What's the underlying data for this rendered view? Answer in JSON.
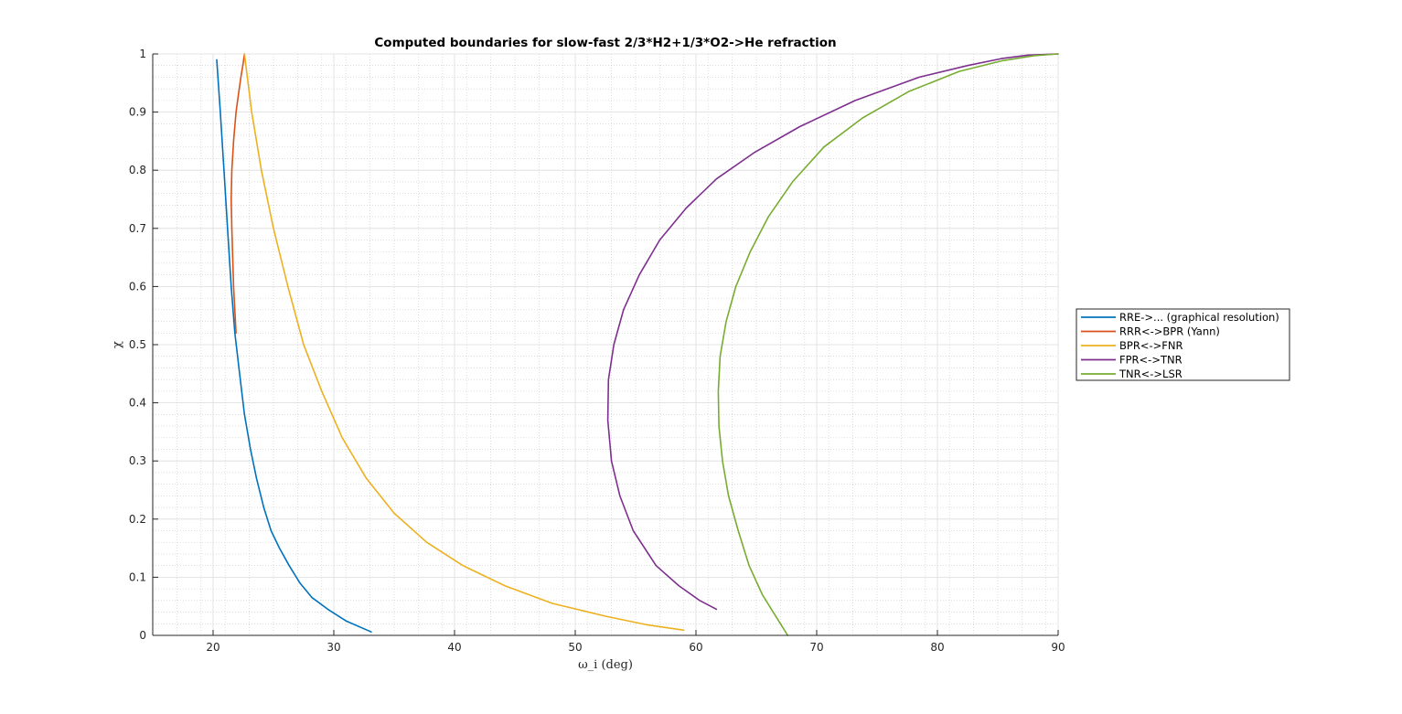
{
  "chart_data": {
    "type": "line",
    "title": "Computed boundaries for slow-fast 2/3*H2+1/3*O2->He refraction",
    "xlabel": "ω_i (deg)",
    "ylabel": "χ",
    "xlim": [
      15,
      90
    ],
    "ylim": [
      0,
      1
    ],
    "xticks": [
      20,
      30,
      40,
      50,
      60,
      70,
      80,
      90
    ],
    "yticks": [
      0,
      0.1,
      0.2,
      0.3,
      0.4,
      0.5,
      0.6,
      0.7,
      0.8,
      0.9,
      1
    ],
    "xtick_labels": [
      "20",
      "30",
      "40",
      "50",
      "60",
      "70",
      "80",
      "90"
    ],
    "ytick_labels": [
      "0",
      "0.1",
      "0.2",
      "0.3",
      "0.4",
      "0.5",
      "0.6",
      "0.7",
      "0.8",
      "0.9",
      "1"
    ],
    "grid": true,
    "minor_grid": true,
    "legend_position": "outside-right",
    "series": [
      {
        "name": "RRE->... (graphical resolution)",
        "color": "#0072BD",
        "x": [
          20.3,
          20.6,
          20.9,
          21.2,
          21.5,
          21.8,
          22.2,
          22.6,
          23.1,
          23.6,
          24.2,
          24.8,
          25.5,
          26.3,
          27.2,
          28.2,
          29.5,
          31.0,
          33.1
        ],
        "y": [
          0.99,
          0.9,
          0.8,
          0.7,
          0.6,
          0.52,
          0.45,
          0.38,
          0.32,
          0.27,
          0.22,
          0.18,
          0.15,
          0.12,
          0.09,
          0.065,
          0.045,
          0.025,
          0.006
        ]
      },
      {
        "name": "RRR<->BPR (Yann)",
        "color": "#D95319",
        "x": [
          21.9,
          21.7,
          21.55,
          21.5,
          21.55,
          21.7,
          21.9,
          22.1,
          22.3,
          22.5,
          22.6
        ],
        "y": [
          0.52,
          0.6,
          0.7,
          0.75,
          0.8,
          0.85,
          0.9,
          0.93,
          0.96,
          0.985,
          1.0
        ]
      },
      {
        "name": "BPR<->FNR",
        "color": "#EDB120",
        "x": [
          22.6,
          23.2,
          24.0,
          25.0,
          26.2,
          27.5,
          29.0,
          30.7,
          32.7,
          35.0,
          37.7,
          40.7,
          44.2,
          48.1,
          52.5,
          56.0,
          59.0
        ],
        "y": [
          1.0,
          0.9,
          0.8,
          0.7,
          0.6,
          0.5,
          0.42,
          0.34,
          0.27,
          0.21,
          0.16,
          0.12,
          0.085,
          0.055,
          0.033,
          0.018,
          0.009
        ]
      },
      {
        "name": "FPR<->TNR",
        "color": "#7E2F8E",
        "x": [
          61.7,
          60.3,
          58.6,
          56.7,
          54.8,
          53.7,
          53.0,
          52.7,
          52.75,
          53.2,
          54.0,
          55.3,
          57.0,
          59.2,
          61.7,
          64.8,
          68.6,
          73.2,
          78.5,
          82.5,
          85.3,
          87.5,
          90.0
        ],
        "y": [
          0.045,
          0.06,
          0.085,
          0.12,
          0.18,
          0.24,
          0.3,
          0.37,
          0.44,
          0.5,
          0.56,
          0.62,
          0.68,
          0.735,
          0.785,
          0.83,
          0.875,
          0.92,
          0.96,
          0.98,
          0.992,
          0.998,
          1.0
        ]
      },
      {
        "name": "TNR<->LSR",
        "color": "#77AC30",
        "x": [
          67.6,
          66.7,
          65.5,
          64.4,
          63.5,
          62.7,
          62.2,
          61.9,
          61.85,
          62.0,
          62.5,
          63.3,
          64.5,
          66.0,
          68.0,
          70.6,
          73.8,
          77.6,
          81.8,
          85.3,
          88.0,
          90.0
        ],
        "y": [
          0.0,
          0.03,
          0.07,
          0.12,
          0.18,
          0.24,
          0.3,
          0.36,
          0.42,
          0.48,
          0.54,
          0.6,
          0.66,
          0.72,
          0.78,
          0.84,
          0.89,
          0.935,
          0.97,
          0.988,
          0.997,
          1.0
        ]
      }
    ]
  }
}
